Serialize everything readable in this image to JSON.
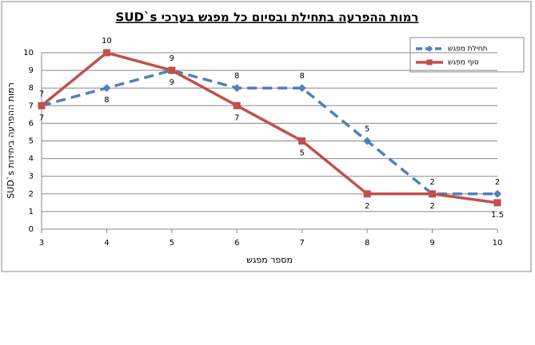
{
  "chart_data": {
    "type": "line",
    "title": "רמות ההפרעה בתחילת ובסיום כל מפגש בערכי SUD`s",
    "x_label": "מספר מפגש",
    "y_label": "רמות ההפרעה ביחידות SUD`s",
    "x": [
      3,
      4,
      5,
      6,
      7,
      8,
      9,
      10
    ],
    "xlim": [
      3,
      10
    ],
    "xticks": [
      3,
      4,
      5,
      6,
      7,
      8,
      9,
      10
    ],
    "ylim": [
      0,
      10
    ],
    "yticks": [
      0,
      1,
      2,
      3,
      4,
      5,
      6,
      7,
      8,
      9,
      10
    ],
    "grid": true,
    "legend": "top-right",
    "series": [
      {
        "name": "תחילת מפגש",
        "color": "#4f81bd",
        "dash": true,
        "marker": "diamond",
        "values": [
          7,
          8,
          9,
          8,
          8,
          5,
          2,
          2
        ]
      },
      {
        "name": "סוף מפגש",
        "color": "#c0504d",
        "dash": false,
        "marker": "square",
        "values": [
          7,
          10,
          9,
          7,
          5,
          2,
          2,
          1.5
        ]
      }
    ]
  }
}
